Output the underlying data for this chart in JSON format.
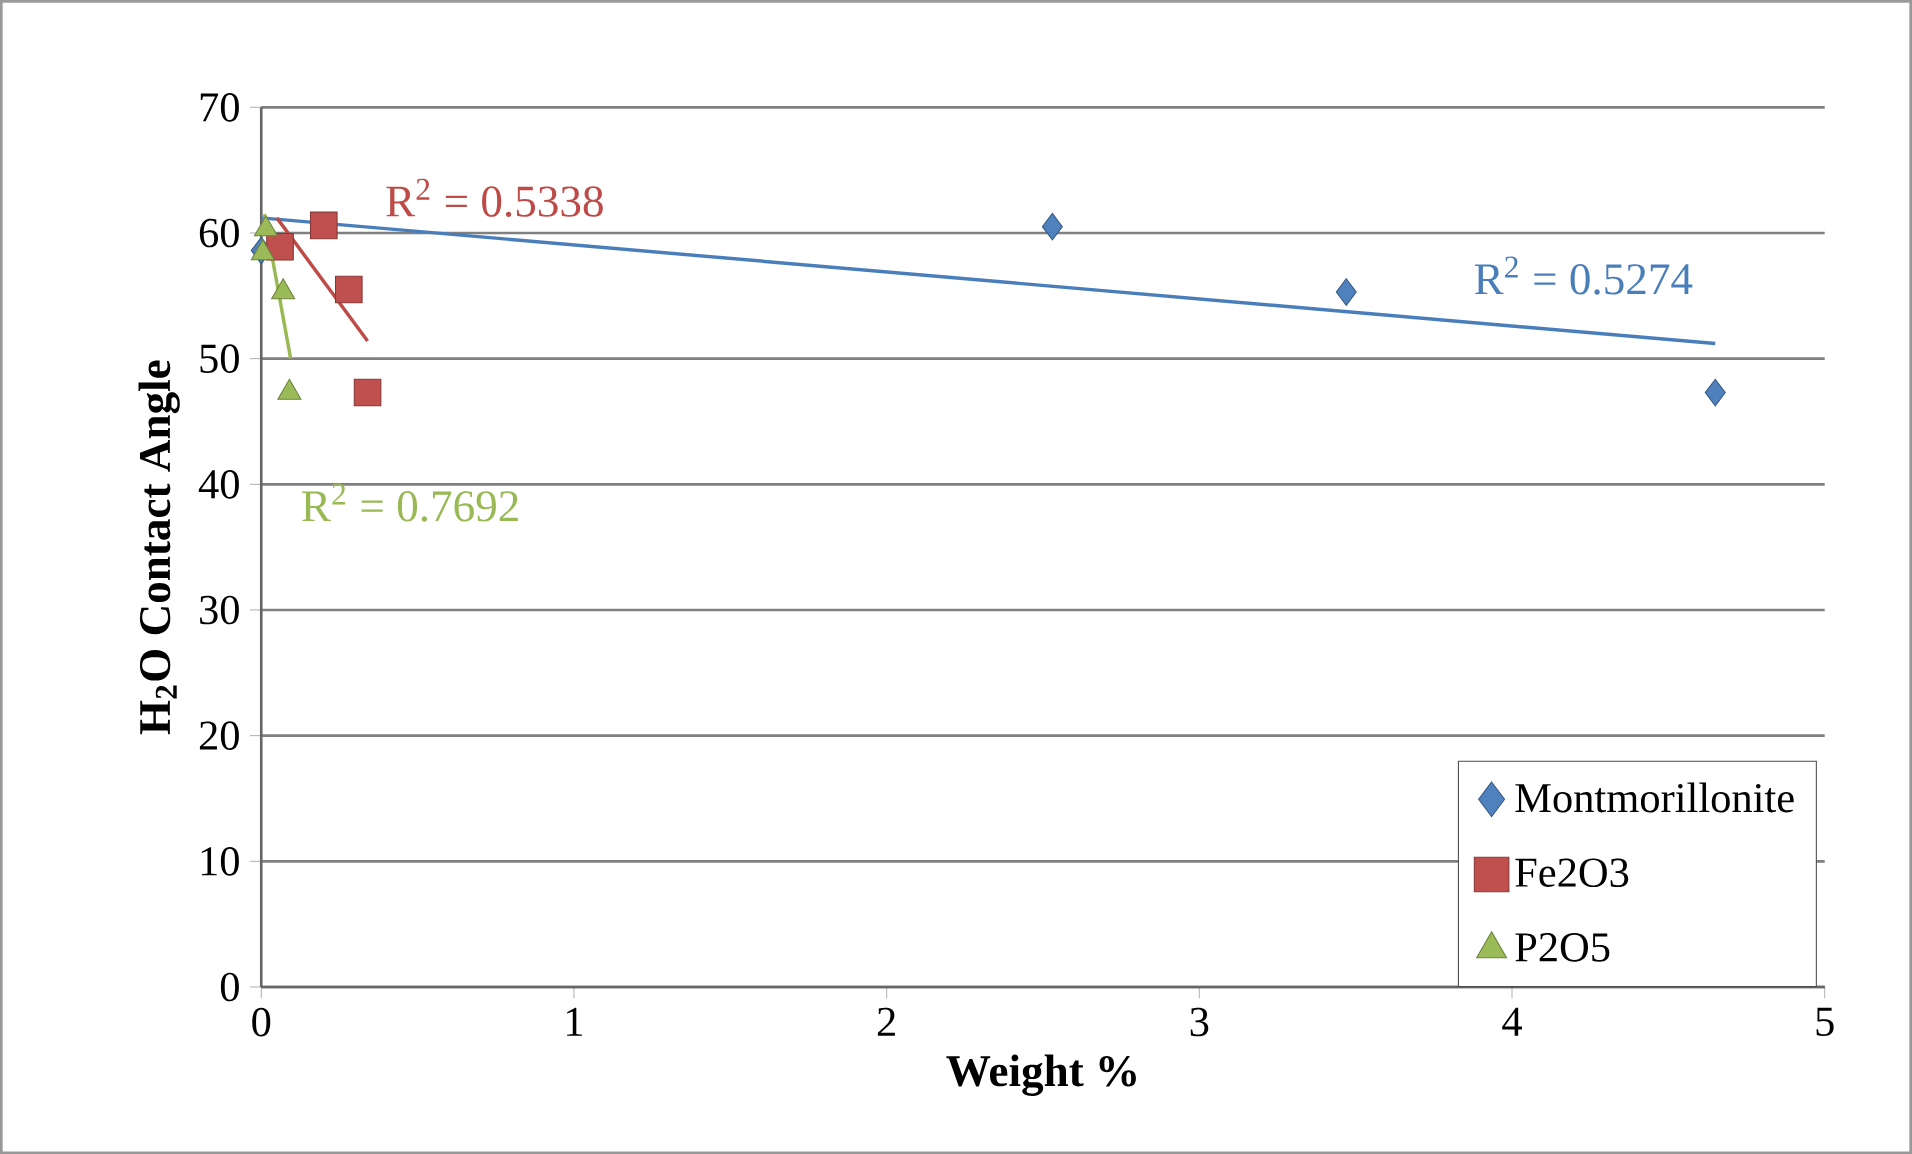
{
  "chart_data": {
    "type": "scatter",
    "xlabel": "Weight %",
    "ylabel": "H$_{2}$O Contact Angle",
    "xlim": [
      0,
      5
    ],
    "ylim": [
      0,
      70
    ],
    "xticks": [
      0,
      1,
      2,
      3,
      4,
      5
    ],
    "yticks": [
      0,
      10,
      20,
      30,
      40,
      50,
      60,
      70
    ],
    "grid": "y",
    "legend": "bottom right",
    "series": [
      {
        "name": "Montmorillonite",
        "color": "#4f81bd",
        "marker": "diamond",
        "x": [
          0,
          2.53,
          3.47,
          4.65
        ],
        "values": [
          58.6,
          60.5,
          55.3,
          47.3
        ]
      },
      {
        "name": "Fe2O3",
        "color": "#c0504d",
        "marker": "square",
        "x": [
          0.06,
          0.2,
          0.28,
          0.34
        ],
        "values": [
          58.9,
          60.6,
          55.5,
          47.3
        ]
      },
      {
        "name": "P2O5",
        "color": "#9bbb59",
        "marker": "triangle",
        "x": [
          0.005,
          0.015,
          0.07,
          0.09
        ],
        "values": [
          58.4,
          60.3,
          55.3,
          47.3
        ]
      },
      {
        "type": "line",
        "color": "#4a7ebb",
        "x": [
          0,
          4.65
        ],
        "values": [
          61.2,
          51.2
        ]
      },
      {
        "type": "line",
        "color": "#be4b48",
        "x": [
          0.05,
          0.34
        ],
        "values": [
          61.2,
          51.4
        ]
      },
      {
        "type": "line",
        "color": "#98b954",
        "x": [
          0.01,
          0.094
        ],
        "values": [
          61.5,
          50
        ]
      }
    ],
    "annotations": [
      "R$^{2}$ = 0.5274",
      "R$^{2}$ = 0.5338",
      "R$^{2}$ = 0.7692"
    ]
  }
}
